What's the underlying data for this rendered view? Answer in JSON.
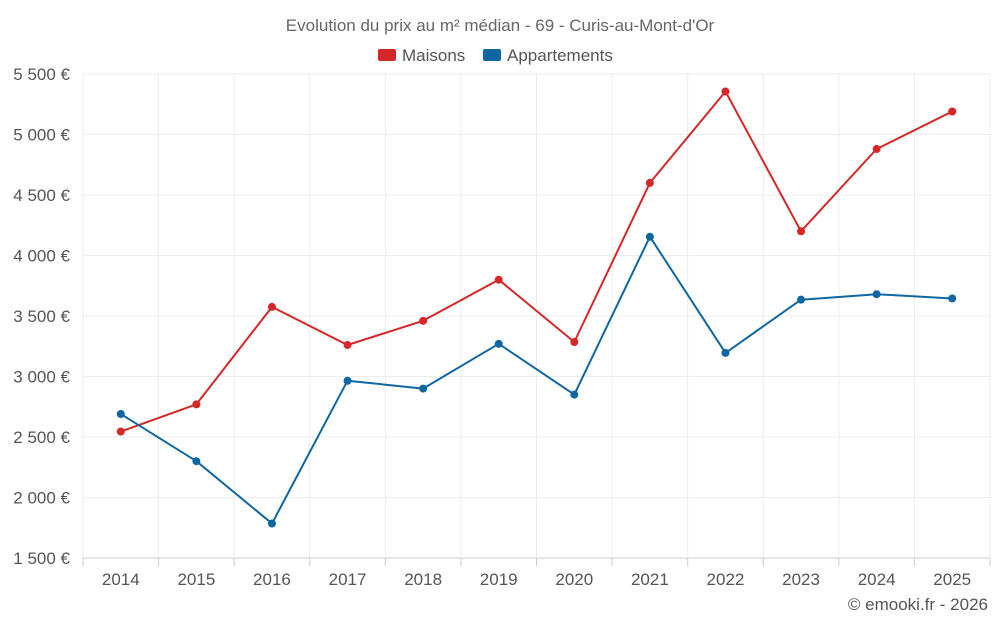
{
  "chart_data": {
    "type": "line",
    "title": "Evolution du prix au m² médian - 69 - Curis-au-Mont-d'Or",
    "categories": [
      "2014",
      "2015",
      "2016",
      "2017",
      "2018",
      "2019",
      "2020",
      "2021",
      "2022",
      "2023",
      "2024",
      "2025"
    ],
    "series": [
      {
        "name": "Maisons",
        "color": "#d62728",
        "values": [
          2545,
          2770,
          3575,
          3260,
          3460,
          3800,
          3285,
          4600,
          5355,
          4200,
          4880,
          5190
        ]
      },
      {
        "name": "Appartements",
        "color": "#0f66a0",
        "values": [
          2690,
          2300,
          1785,
          2965,
          2900,
          3270,
          2850,
          4155,
          3195,
          3635,
          3680,
          3645
        ]
      }
    ],
    "ylim": [
      1500,
      5500
    ],
    "yticks": [
      1500,
      2000,
      2500,
      3000,
      3500,
      4000,
      4500,
      5000,
      5500
    ],
    "ytick_labels": [
      "1 500 €",
      "2 000 €",
      "2 500 €",
      "3 000 €",
      "3 500 €",
      "4 000 €",
      "4 500 €",
      "5 000 €",
      "5 500 €"
    ],
    "xlabel": "",
    "ylabel": "",
    "grid": true,
    "legend_position": "top-center"
  },
  "credit": "© emooki.fr - 2026"
}
